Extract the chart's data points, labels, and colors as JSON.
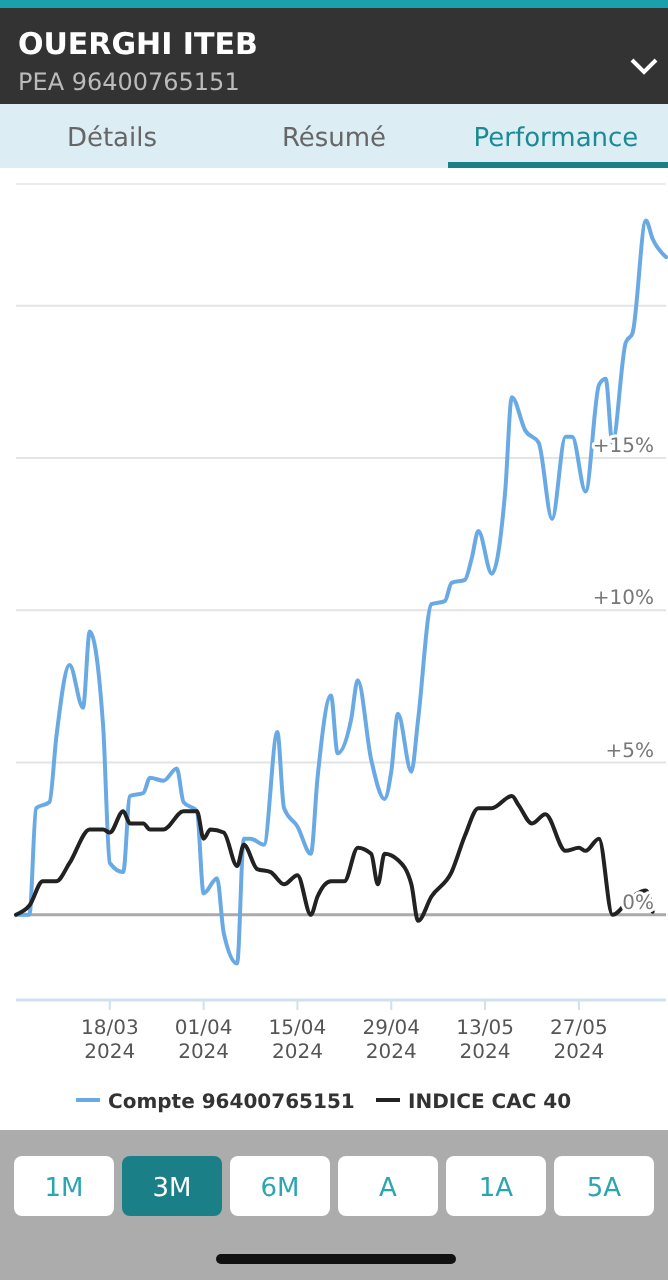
{
  "chart_data": {
    "type": "line",
    "title": "OUERGHI ITEB",
    "subtitle": "PEA 96400765151",
    "annotations": [
      "Détails",
      "Résumé",
      "Performance",
      "1M",
      "3M",
      "6M",
      "A",
      "1A",
      "5A"
    ],
    "xlim": [
      "2024-03-04",
      "2024-06-09"
    ],
    "xticks": [
      {
        "value": "2024-03-18",
        "label": "18/03\n2024"
      },
      {
        "value": "2024-04-01",
        "label": "01/04\n2024"
      },
      {
        "value": "2024-04-15",
        "label": "15/04\n2024"
      },
      {
        "value": "2024-04-29",
        "label": "29/04\n2024"
      },
      {
        "value": "2024-05-13",
        "label": "13/05\n2024"
      },
      {
        "value": "2024-05-27",
        "label": "27/05\n2024"
      }
    ],
    "ylim": [
      -2.8,
      24
    ],
    "yticks": [
      {
        "value": 0,
        "label": "0%"
      },
      {
        "value": 5,
        "label": "+5%"
      },
      {
        "value": 10,
        "label": "+10%"
      },
      {
        "value": 15,
        "label": "+15%"
      },
      {
        "value": 20,
        "label": null
      }
    ],
    "grid": "y",
    "legend": "bottom",
    "marker": "none",
    "line_style": "solid",
    "series": [
      {
        "name": "Compte 96400765151",
        "color": "#6aaae4",
        "x": [
          "2024-03-04",
          "2024-03-06",
          "2024-03-07",
          "2024-03-09",
          "2024-03-10",
          "2024-03-12",
          "2024-03-14",
          "2024-03-15",
          "2024-03-17",
          "2024-03-18",
          "2024-03-20",
          "2024-03-21",
          "2024-03-23",
          "2024-03-24",
          "2024-03-26",
          "2024-03-28",
          "2024-03-29",
          "2024-03-31",
          "2024-04-01",
          "2024-04-03",
          "2024-04-04",
          "2024-04-06",
          "2024-04-07",
          "2024-04-08",
          "2024-04-10",
          "2024-04-12",
          "2024-04-13",
          "2024-04-15",
          "2024-04-17",
          "2024-04-18",
          "2024-04-20",
          "2024-04-21",
          "2024-04-23",
          "2024-04-24",
          "2024-04-26",
          "2024-04-28",
          "2024-04-29",
          "2024-04-30",
          "2024-05-02",
          "2024-05-03",
          "2024-05-05",
          "2024-05-07",
          "2024-05-08",
          "2024-05-10",
          "2024-05-11",
          "2024-05-12",
          "2024-05-14",
          "2024-05-16",
          "2024-05-17",
          "2024-05-19",
          "2024-05-21",
          "2024-05-23",
          "2024-05-25",
          "2024-05-26",
          "2024-05-28",
          "2024-05-30",
          "2024-05-31",
          "2024-06-01",
          "2024-06-03",
          "2024-06-04",
          "2024-06-06",
          "2024-06-07",
          "2024-06-09"
        ],
        "values": [
          0,
          0,
          3.5,
          3.7,
          5.8,
          8.2,
          6.8,
          9.3,
          6.2,
          1.7,
          1.4,
          3.9,
          4.0,
          4.5,
          4.4,
          4.8,
          3.7,
          3.4,
          0.7,
          1.2,
          -0.6,
          -1.6,
          2.5,
          2.5,
          2.3,
          6.0,
          3.5,
          2.9,
          2.0,
          4.5,
          7.2,
          5.3,
          6.4,
          7.7,
          5.1,
          3.8,
          4.7,
          6.6,
          4.7,
          6.4,
          10.2,
          10.3,
          10.9,
          11.0,
          11.7,
          12.6,
          11.2,
          13.9,
          17.0,
          15.9,
          15.5,
          13.0,
          15.7,
          15.7,
          13.9,
          17.4,
          17.6,
          15.5,
          18.8,
          19.1,
          22.8,
          22.2,
          21.6
        ]
      },
      {
        "name": "INDICE CAC 40",
        "color": "#222222",
        "x": [
          "2024-03-04",
          "2024-03-06",
          "2024-03-08",
          "2024-03-10",
          "2024-03-12",
          "2024-03-15",
          "2024-03-17",
          "2024-03-18",
          "2024-03-20",
          "2024-03-21",
          "2024-03-23",
          "2024-03-24",
          "2024-03-26",
          "2024-03-29",
          "2024-03-31",
          "2024-04-01",
          "2024-04-02",
          "2024-04-04",
          "2024-04-06",
          "2024-04-07",
          "2024-04-09",
          "2024-04-11",
          "2024-04-13",
          "2024-04-15",
          "2024-04-17",
          "2024-04-18",
          "2024-04-20",
          "2024-04-22",
          "2024-04-24",
          "2024-04-26",
          "2024-04-27",
          "2024-04-28",
          "2024-04-30",
          "2024-05-02",
          "2024-05-03",
          "2024-05-05",
          "2024-05-08",
          "2024-05-10",
          "2024-05-12",
          "2024-05-14",
          "2024-05-17",
          "2024-05-18",
          "2024-05-20",
          "2024-05-22",
          "2024-05-25",
          "2024-05-27",
          "2024-05-28",
          "2024-05-30",
          "2024-06-01",
          "2024-06-04",
          "2024-06-06",
          "2024-06-07"
        ],
        "values": [
          0,
          0.3,
          1.1,
          1.1,
          1.7,
          2.8,
          2.8,
          2.7,
          3.4,
          3.0,
          3.0,
          2.8,
          2.8,
          3.4,
          3.4,
          2.5,
          2.8,
          2.7,
          1.6,
          2.3,
          1.5,
          1.4,
          1.0,
          1.3,
          0,
          0.6,
          1.1,
          1.1,
          2.2,
          2.0,
          1.0,
          2.0,
          1.8,
          1.0,
          -0.2,
          0.6,
          1.4,
          2.6,
          3.5,
          3.5,
          3.9,
          3.6,
          3.0,
          3.3,
          2.1,
          2.2,
          2.1,
          2.5,
          0,
          0.6,
          0.8,
          0.1
        ]
      }
    ]
  }
}
